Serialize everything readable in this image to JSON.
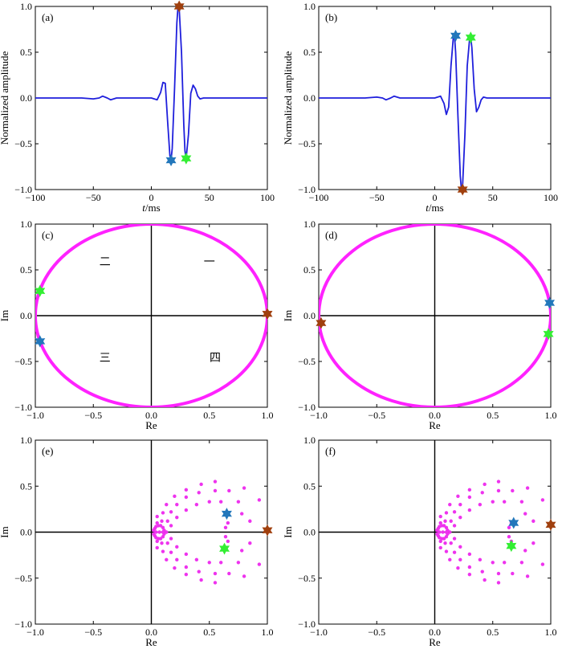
{
  "colors": {
    "waveform": "#1f1fdc",
    "unit_circle": "#ff22ff",
    "scatter": "#ee33ee",
    "star_brown": "#a0400e",
    "star_blue": "#2277bb",
    "star_green": "#33ee33",
    "axis_line": "#000000"
  },
  "chart_data": [
    {
      "type": "line",
      "panel_label": "(a)",
      "xlabel": "t/ms",
      "ylabel": "Normalized amplitude",
      "xlim": [
        -100,
        100
      ],
      "ylim": [
        -1,
        1
      ],
      "xticks": [
        -100,
        -50,
        0,
        50,
        100
      ],
      "yticks": [
        -1.0,
        -0.5,
        0.0,
        0.5,
        1.0
      ],
      "xtick_labels": [
        "−100",
        "−50",
        "0",
        "50",
        "100"
      ],
      "ytick_labels": [
        "−1.0",
        "−0.5",
        "0.0",
        "0.5",
        "1.0"
      ],
      "series": [
        {
          "x": [
            -100,
            -60,
            -50,
            -45,
            -42,
            -38,
            -35,
            -30,
            -25,
            -20,
            -10,
            0,
            5,
            8,
            10,
            12,
            14,
            16,
            17,
            18,
            20,
            22,
            23,
            24,
            26,
            28,
            29,
            30,
            32,
            34,
            36,
            38,
            40,
            42,
            45,
            50,
            60,
            100
          ],
          "y": [
            0,
            0,
            -0.01,
            0.0,
            0.02,
            0.0,
            -0.02,
            0.0,
            0.0,
            0.0,
            0.0,
            0.0,
            -0.02,
            0.06,
            0.17,
            0.16,
            -0.25,
            -0.63,
            -0.68,
            -0.55,
            0.1,
            0.82,
            1.0,
            0.98,
            0.5,
            -0.3,
            -0.58,
            -0.66,
            -0.4,
            0.05,
            0.14,
            0.1,
            0.02,
            -0.01,
            0.0,
            0.0,
            0.0,
            0.0
          ]
        }
      ],
      "markers": [
        {
          "x": 24,
          "y": 1.0,
          "color": "star_brown"
        },
        {
          "x": 17,
          "y": -0.68,
          "color": "star_blue"
        },
        {
          "x": 30,
          "y": -0.66,
          "color": "star_green"
        }
      ]
    },
    {
      "type": "line",
      "panel_label": "(b)",
      "xlabel": "t/ms",
      "ylabel": "Normalized amplitude",
      "xlim": [
        -100,
        100
      ],
      "ylim": [
        -1,
        1
      ],
      "xticks": [
        -100,
        -50,
        0,
        50,
        100
      ],
      "yticks": [
        -1.0,
        -0.5,
        0.0,
        0.5,
        1.0
      ],
      "xtick_labels": [
        "−100",
        "−50",
        "0",
        "50",
        "100"
      ],
      "ytick_labels": [
        "−1.0",
        "−0.5",
        "0.0",
        "0.5",
        "1.0"
      ],
      "series": [
        {
          "x": [
            -100,
            -60,
            -50,
            -45,
            -42,
            -38,
            -35,
            -30,
            -25,
            -20,
            -10,
            0,
            5,
            8,
            10,
            12,
            14,
            16,
            17,
            18,
            20,
            22,
            23,
            24,
            26,
            28,
            30,
            31,
            32,
            34,
            36,
            38,
            40,
            42,
            45,
            50,
            60,
            100
          ],
          "y": [
            0,
            0,
            0.01,
            0.0,
            -0.02,
            0.0,
            0.02,
            0.0,
            0.0,
            0.0,
            0.0,
            0.0,
            0.02,
            -0.06,
            -0.18,
            -0.1,
            0.35,
            0.66,
            0.68,
            0.5,
            -0.2,
            -0.85,
            -1.0,
            -0.96,
            -0.4,
            0.35,
            0.64,
            0.66,
            0.55,
            0.1,
            -0.15,
            -0.1,
            -0.02,
            0.01,
            0.0,
            0.0,
            0.0,
            0.0
          ]
        }
      ],
      "markers": [
        {
          "x": 24,
          "y": -1.0,
          "color": "star_brown"
        },
        {
          "x": 18,
          "y": 0.68,
          "color": "star_blue"
        },
        {
          "x": 31,
          "y": 0.66,
          "color": "star_green"
        }
      ]
    },
    {
      "type": "scatter",
      "panel_label": "(c)",
      "xlabel": "Re",
      "ylabel": "Im",
      "xlim": [
        -1,
        1
      ],
      "ylim": [
        -1,
        1
      ],
      "xticks": [
        -1.0,
        -0.5,
        0.0,
        0.5,
        1.0
      ],
      "yticks": [
        -1.0,
        -0.5,
        0.0,
        0.5,
        1.0
      ],
      "xtick_labels": [
        "−1.0",
        "−0.5",
        "0.0",
        "0.5",
        "1.0"
      ],
      "ytick_labels": [
        "−1.0",
        "−0.5",
        "0.0",
        "0.5",
        "1.0"
      ],
      "unit_circle": true,
      "quadrant_labels": [
        {
          "text": "一",
          "x": 0.5,
          "y": 0.55
        },
        {
          "text": "二",
          "x": -0.4,
          "y": 0.55
        },
        {
          "text": "三",
          "x": -0.4,
          "y": -0.5
        },
        {
          "text": "四",
          "x": 0.55,
          "y": -0.5
        }
      ],
      "markers": [
        {
          "x": 1.0,
          "y": 0.02,
          "color": "star_brown"
        },
        {
          "x": -0.96,
          "y": 0.27,
          "color": "star_green"
        },
        {
          "x": -0.96,
          "y": -0.28,
          "color": "star_blue"
        }
      ]
    },
    {
      "type": "scatter",
      "panel_label": "(d)",
      "xlabel": "Re",
      "ylabel": "Im",
      "xlim": [
        -1,
        1
      ],
      "ylim": [
        -1,
        1
      ],
      "xticks": [
        -1.0,
        -0.5,
        0.0,
        0.5,
        1.0
      ],
      "yticks": [
        -1.0,
        -0.5,
        0.0,
        0.5,
        1.0
      ],
      "xtick_labels": [
        "−1.0",
        "−0.5",
        "0.0",
        "0.5",
        "1.0"
      ],
      "ytick_labels": [
        "−1.0",
        "−0.5",
        "0.0",
        "0.5",
        "1.0"
      ],
      "unit_circle": true,
      "markers": [
        {
          "x": -0.98,
          "y": -0.08,
          "color": "star_brown"
        },
        {
          "x": 0.99,
          "y": 0.14,
          "color": "star_blue"
        },
        {
          "x": 0.98,
          "y": -0.2,
          "color": "star_green"
        }
      ]
    },
    {
      "type": "scatter",
      "panel_label": "(e)",
      "xlabel": "Re",
      "ylabel": "Im",
      "xlim": [
        -1,
        1
      ],
      "ylim": [
        -1,
        1
      ],
      "xticks": [
        -1.0,
        -0.5,
        0.0,
        0.5,
        1.0
      ],
      "yticks": [
        -1.0,
        -0.5,
        0.0,
        0.5,
        1.0
      ],
      "xtick_labels": [
        "−1.0",
        "−0.5",
        "0.0",
        "0.5",
        "1.0"
      ],
      "ytick_labels": [
        "−1.0",
        "−0.5",
        "0.0",
        "0.5",
        "1.0"
      ],
      "points": [
        [
          0.02,
          0.02
        ],
        [
          0.02,
          -0.02
        ],
        [
          0.03,
          0.04
        ],
        [
          0.03,
          -0.04
        ],
        [
          0.04,
          0.06
        ],
        [
          0.04,
          -0.06
        ],
        [
          0.06,
          0.07
        ],
        [
          0.06,
          -0.07
        ],
        [
          0.08,
          0.07
        ],
        [
          0.08,
          -0.07
        ],
        [
          0.1,
          0.05
        ],
        [
          0.1,
          -0.05
        ],
        [
          0.11,
          0.02
        ],
        [
          0.11,
          -0.02
        ],
        [
          0.04,
          0.0
        ],
        [
          0.07,
          0.0
        ],
        [
          0.1,
          0.0
        ],
        [
          0.13,
          0.0
        ],
        [
          0.05,
          0.1
        ],
        [
          0.05,
          -0.1
        ],
        [
          0.09,
          0.12
        ],
        [
          0.09,
          -0.12
        ],
        [
          0.14,
          0.12
        ],
        [
          0.14,
          -0.12
        ],
        [
          0.17,
          0.07
        ],
        [
          0.17,
          -0.07
        ],
        [
          0.05,
          0.17
        ],
        [
          0.05,
          -0.17
        ],
        [
          0.1,
          0.21
        ],
        [
          0.1,
          -0.21
        ],
        [
          0.17,
          0.22
        ],
        [
          0.17,
          -0.22
        ],
        [
          0.22,
          0.16
        ],
        [
          0.22,
          -0.16
        ],
        [
          0.13,
          0.3
        ],
        [
          0.13,
          -0.3
        ],
        [
          0.22,
          0.3
        ],
        [
          0.22,
          -0.3
        ],
        [
          0.3,
          0.24
        ],
        [
          0.3,
          -0.24
        ],
        [
          0.2,
          0.39
        ],
        [
          0.2,
          -0.39
        ],
        [
          0.3,
          0.38
        ],
        [
          0.3,
          -0.38
        ],
        [
          0.39,
          0.3
        ],
        [
          0.39,
          -0.3
        ],
        [
          0.3,
          0.46
        ],
        [
          0.3,
          -0.46
        ],
        [
          0.41,
          0.43
        ],
        [
          0.41,
          -0.43
        ],
        [
          0.5,
          0.33
        ],
        [
          0.5,
          -0.33
        ],
        [
          0.43,
          0.52
        ],
        [
          0.43,
          -0.52
        ],
        [
          0.55,
          0.45
        ],
        [
          0.55,
          -0.45
        ],
        [
          0.6,
          0.33
        ],
        [
          0.6,
          -0.33
        ],
        [
          0.55,
          0.55
        ],
        [
          0.55,
          -0.55
        ],
        [
          0.67,
          0.45
        ],
        [
          0.67,
          -0.45
        ],
        [
          0.75,
          0.33
        ],
        [
          0.75,
          -0.33
        ],
        [
          0.8,
          0.48
        ],
        [
          0.8,
          -0.48
        ],
        [
          0.78,
          0.2
        ],
        [
          0.78,
          -0.2
        ],
        [
          0.64,
          0.05
        ],
        [
          0.64,
          -0.05
        ],
        [
          0.66,
          0.1
        ],
        [
          0.66,
          -0.1
        ],
        [
          0.85,
          0.12
        ],
        [
          0.85,
          -0.12
        ],
        [
          0.93,
          0.35
        ],
        [
          0.93,
          -0.35
        ]
      ],
      "markers": [
        {
          "x": 1.0,
          "y": 0.02,
          "color": "star_brown"
        },
        {
          "x": 0.65,
          "y": 0.2,
          "color": "star_blue"
        },
        {
          "x": 0.63,
          "y": -0.18,
          "color": "star_green"
        }
      ]
    },
    {
      "type": "scatter",
      "panel_label": "(f)",
      "xlabel": "Re",
      "ylabel": "Im",
      "xlim": [
        -1,
        1
      ],
      "ylim": [
        -1,
        1
      ],
      "xticks": [
        -1.0,
        -0.5,
        0.0,
        0.5,
        1.0
      ],
      "yticks": [
        -1.0,
        -0.5,
        0.0,
        0.5,
        1.0
      ],
      "xtick_labels": [
        "−1.0",
        "−0.5",
        "0.0",
        "0.5",
        "1.0"
      ],
      "ytick_labels": [
        "−1.0",
        "−0.5",
        "0.0",
        "0.5",
        "1.0"
      ],
      "points": [
        [
          0.02,
          0.02
        ],
        [
          0.02,
          -0.02
        ],
        [
          0.03,
          0.04
        ],
        [
          0.03,
          -0.04
        ],
        [
          0.04,
          0.06
        ],
        [
          0.04,
          -0.06
        ],
        [
          0.06,
          0.07
        ],
        [
          0.06,
          -0.07
        ],
        [
          0.08,
          0.07
        ],
        [
          0.08,
          -0.07
        ],
        [
          0.1,
          0.05
        ],
        [
          0.1,
          -0.05
        ],
        [
          0.11,
          0.02
        ],
        [
          0.11,
          -0.02
        ],
        [
          0.04,
          0.0
        ],
        [
          0.07,
          0.0
        ],
        [
          0.1,
          0.0
        ],
        [
          0.13,
          0.0
        ],
        [
          0.05,
          0.1
        ],
        [
          0.05,
          -0.1
        ],
        [
          0.09,
          0.12
        ],
        [
          0.09,
          -0.12
        ],
        [
          0.14,
          0.12
        ],
        [
          0.14,
          -0.12
        ],
        [
          0.17,
          0.07
        ],
        [
          0.17,
          -0.07
        ],
        [
          0.05,
          0.17
        ],
        [
          0.05,
          -0.17
        ],
        [
          0.1,
          0.21
        ],
        [
          0.1,
          -0.21
        ],
        [
          0.17,
          0.22
        ],
        [
          0.17,
          -0.22
        ],
        [
          0.22,
          0.16
        ],
        [
          0.22,
          -0.16
        ],
        [
          0.13,
          0.3
        ],
        [
          0.13,
          -0.3
        ],
        [
          0.22,
          0.3
        ],
        [
          0.22,
          -0.3
        ],
        [
          0.3,
          0.24
        ],
        [
          0.3,
          -0.24
        ],
        [
          0.2,
          0.39
        ],
        [
          0.2,
          -0.39
        ],
        [
          0.3,
          0.38
        ],
        [
          0.3,
          -0.38
        ],
        [
          0.39,
          0.3
        ],
        [
          0.39,
          -0.3
        ],
        [
          0.3,
          0.46
        ],
        [
          0.3,
          -0.46
        ],
        [
          0.41,
          0.43
        ],
        [
          0.41,
          -0.43
        ],
        [
          0.5,
          0.33
        ],
        [
          0.5,
          -0.33
        ],
        [
          0.43,
          0.52
        ],
        [
          0.43,
          -0.52
        ],
        [
          0.55,
          0.45
        ],
        [
          0.55,
          -0.45
        ],
        [
          0.6,
          0.33
        ],
        [
          0.6,
          -0.33
        ],
        [
          0.55,
          0.55
        ],
        [
          0.55,
          -0.55
        ],
        [
          0.67,
          0.45
        ],
        [
          0.67,
          -0.45
        ],
        [
          0.75,
          0.33
        ],
        [
          0.75,
          -0.33
        ],
        [
          0.8,
          0.48
        ],
        [
          0.8,
          -0.48
        ],
        [
          0.78,
          0.2
        ],
        [
          0.78,
          -0.2
        ],
        [
          0.64,
          0.05
        ],
        [
          0.64,
          -0.05
        ],
        [
          0.66,
          0.1
        ],
        [
          0.66,
          -0.1
        ],
        [
          0.85,
          0.12
        ],
        [
          0.85,
          -0.12
        ],
        [
          0.93,
          0.35
        ],
        [
          0.93,
          -0.35
        ]
      ],
      "markers": [
        {
          "x": 1.0,
          "y": 0.08,
          "color": "star_brown"
        },
        {
          "x": 0.68,
          "y": 0.1,
          "color": "star_blue"
        },
        {
          "x": 0.66,
          "y": -0.15,
          "color": "star_green"
        }
      ]
    }
  ]
}
